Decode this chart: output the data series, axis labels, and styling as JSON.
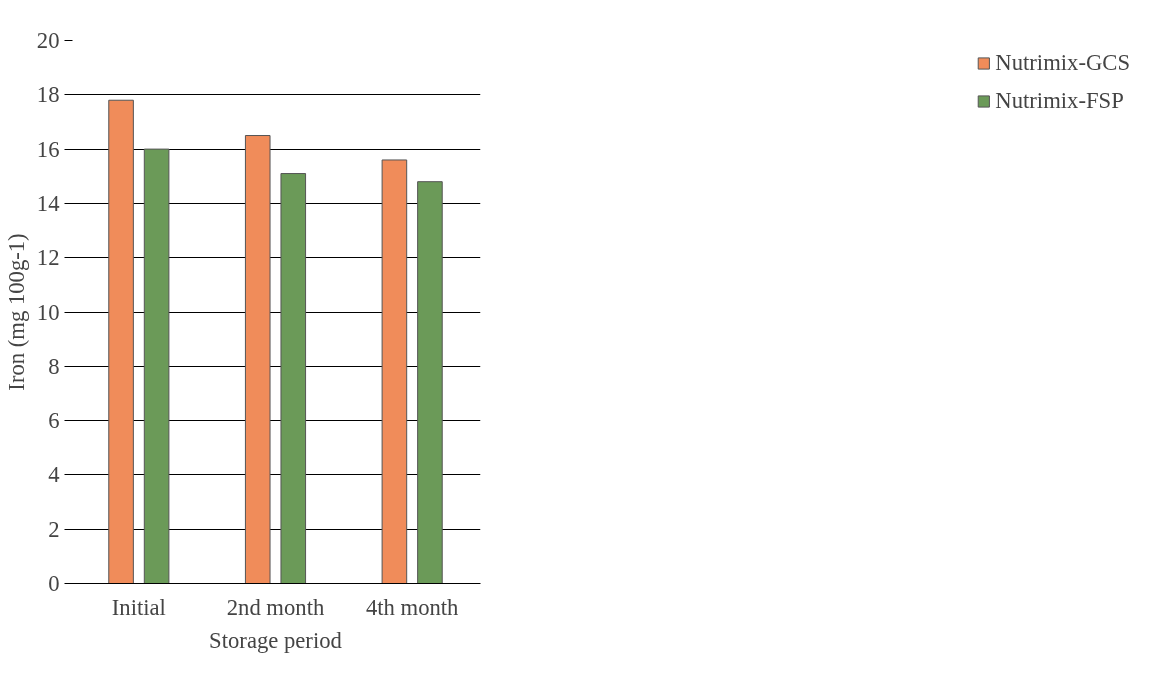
{
  "chart_data": {
    "type": "bar",
    "xlabel": "Storage period",
    "ylabel": "Iron (mg 100g-1)",
    "categories": [
      "Initial",
      "2nd month",
      "4th month"
    ],
    "series": [
      {
        "name": "Nutrimix-GCS",
        "color": "#f08c5a",
        "values": [
          17.8,
          16.5,
          15.6
        ]
      },
      {
        "name": "Nutrimix-FSP",
        "color": "#6b9a58",
        "values": [
          16.0,
          15.1,
          14.8
        ]
      }
    ],
    "ylim": [
      0,
      20
    ],
    "yticks": [
      0,
      2,
      4,
      6,
      8,
      10,
      12,
      14,
      16,
      18,
      20
    ],
    "grid": "y",
    "legend": "right"
  }
}
